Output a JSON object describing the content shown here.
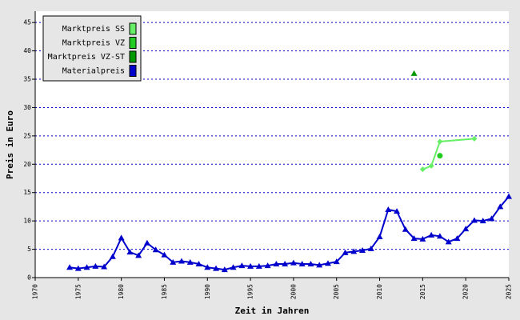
{
  "chart_data": {
    "type": "line",
    "x_label": "Zeit in Jahren",
    "y_label": "Preis in Euro",
    "xlim": [
      1970,
      2025
    ],
    "xticks": [
      1970,
      1975,
      1980,
      1985,
      1990,
      1995,
      2000,
      2005,
      2010,
      2015,
      2020,
      2025
    ],
    "ylim": [
      0,
      47
    ],
    "yticks": [
      0,
      5,
      10,
      15,
      20,
      25,
      30,
      35,
      40,
      45
    ],
    "grid": true,
    "legend": "top-left",
    "series": [
      {
        "name": "Marktpreis SS",
        "color": "#66ee66",
        "marker": "diamond",
        "x": [
          2015,
          2016,
          2017,
          2021
        ],
        "values": [
          19.1,
          19.7,
          24.0,
          24.5
        ]
      },
      {
        "name": "Marktpreis VZ",
        "color": "#22cc22",
        "marker": "circle",
        "x": [
          2017
        ],
        "values": [
          21.5
        ]
      },
      {
        "name": "Marktpreis VZ-ST",
        "color": "#009900",
        "marker": "triangle",
        "x": [
          2014
        ],
        "values": [
          36
        ]
      },
      {
        "name": "Materialpreis",
        "color": "#0000cc",
        "marker": "triangle",
        "x": [
          1974,
          1975,
          1976,
          1977,
          1978,
          1979,
          1980,
          1981,
          1982,
          1983,
          1984,
          1985,
          1986,
          1987,
          1988,
          1989,
          1990,
          1991,
          1992,
          1993,
          1994,
          1995,
          1996,
          1997,
          1998,
          1999,
          2000,
          2001,
          2002,
          2003,
          2004,
          2005,
          2006,
          2007,
          2008,
          2009,
          2010,
          2011,
          2012,
          2013,
          2014,
          2015,
          2016,
          2017,
          2018,
          2019,
          2020,
          2021,
          2022,
          2023,
          2024,
          2025
        ],
        "values": [
          1.8,
          1.6,
          1.8,
          2.0,
          1.9,
          3.7,
          7.0,
          4.5,
          3.9,
          6.1,
          4.9,
          4.0,
          2.7,
          2.9,
          2.7,
          2.4,
          1.8,
          1.6,
          1.4,
          1.8,
          2.1,
          2.0,
          2.0,
          2.1,
          2.4,
          2.4,
          2.6,
          2.4,
          2.4,
          2.2,
          2.5,
          2.8,
          4.4,
          4.6,
          4.8,
          5.1,
          7.2,
          12.0,
          11.7,
          8.5,
          6.9,
          6.8,
          7.5,
          7.3,
          6.3,
          6.9,
          8.6,
          10.1,
          10.0,
          10.4,
          12.5,
          14.3
        ]
      }
    ]
  }
}
